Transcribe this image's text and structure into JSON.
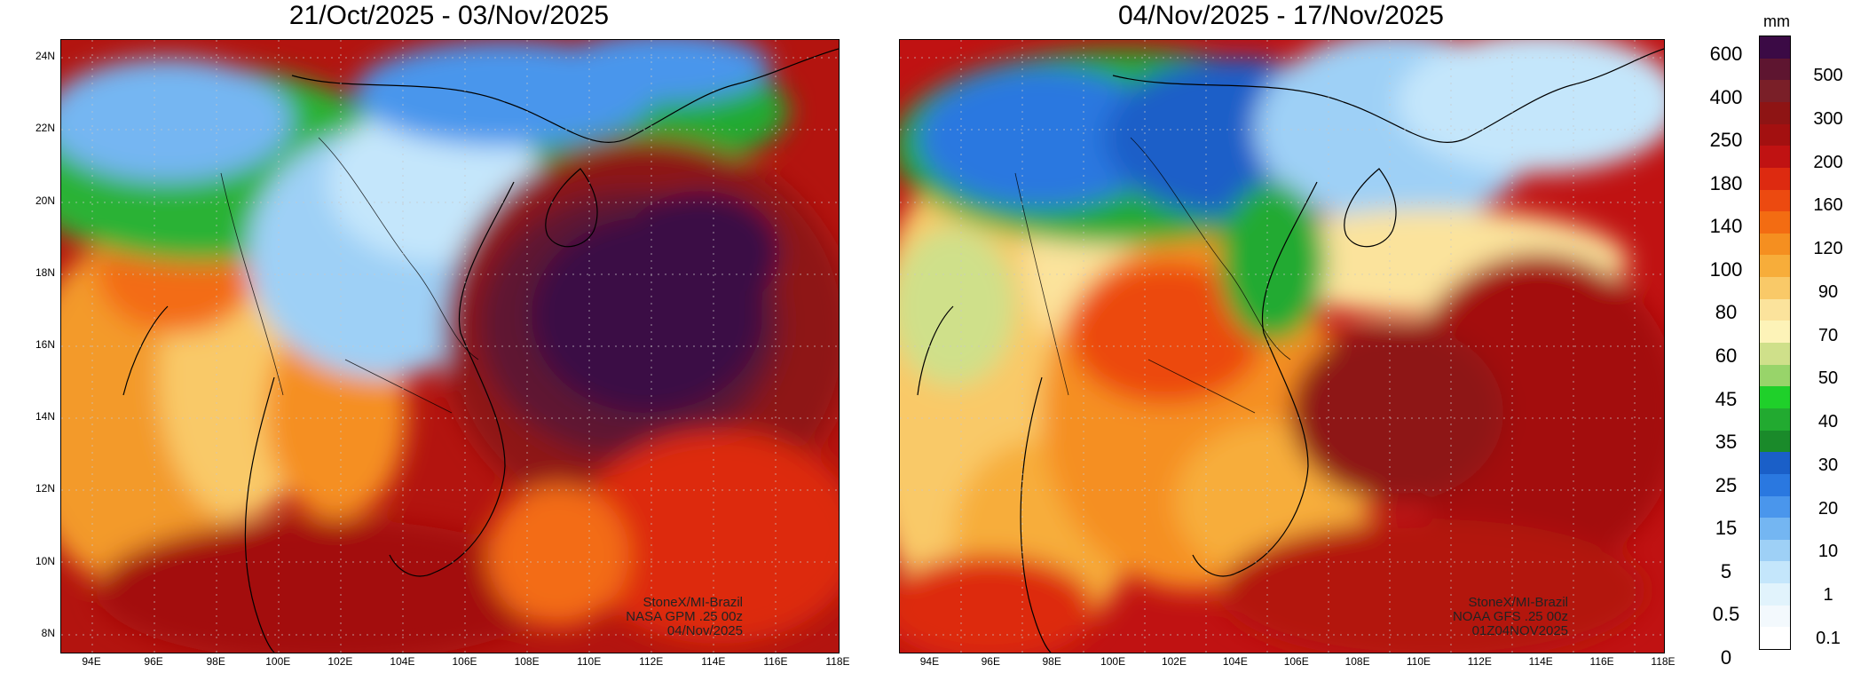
{
  "panels": [
    {
      "title": "21/Oct/2025 - 03/Nov/2025",
      "credit": [
        "StoneX/MI-Brazil",
        "NASA GPM .25 00z",
        "04/Nov/2025"
      ]
    },
    {
      "title": "04/Nov/2025 - 17/Nov/2025",
      "credit": [
        "StoneX/MI-Brazil",
        "NOAA GFS .25 00z",
        "01Z04NOV2025"
      ]
    }
  ],
  "map_extent": {
    "lon_min": 93,
    "lon_max": 118,
    "lat_min": 7.5,
    "lat_max": 24.5
  },
  "lat_ticks": [
    "24N",
    "22N",
    "20N",
    "18N",
    "16N",
    "14N",
    "12N",
    "10N",
    "8N"
  ],
  "lat_values": [
    24,
    22,
    20,
    18,
    16,
    14,
    12,
    10,
    8
  ],
  "lon_ticks": [
    "94E",
    "96E",
    "98E",
    "100E",
    "102E",
    "104E",
    "106E",
    "108E",
    "110E",
    "112E",
    "114E",
    "116E",
    "118E"
  ],
  "lon_values": [
    94,
    96,
    98,
    100,
    102,
    104,
    106,
    108,
    110,
    112,
    114,
    116,
    118
  ],
  "colorbar": {
    "unit": "mm",
    "labels_left": [
      "600",
      "400",
      "250",
      "180",
      "140",
      "100",
      "80",
      "60",
      "45",
      "35",
      "25",
      "15",
      "5",
      "0.5",
      "0"
    ],
    "labels_right": [
      "500",
      "300",
      "200",
      "160",
      "120",
      "90",
      "70",
      "50",
      "40",
      "30",
      "20",
      "10",
      "1",
      "0.1"
    ],
    "colors_top_to_bottom": [
      "#3b0a45",
      "#5e1530",
      "#7a1f28",
      "#8e1414",
      "#a31010",
      "#c01212",
      "#dd2a10",
      "#ec4a10",
      "#f36c12",
      "#f58f20",
      "#f7ad3a",
      "#f9c968",
      "#fbe39c",
      "#fdf3b8",
      "#cfe08a",
      "#98d46a",
      "#1fd02a",
      "#22aa30",
      "#1a8a2a",
      "#1a5fc8",
      "#2a78e0",
      "#4a96ec",
      "#74b6f2",
      "#9ed0f6",
      "#c4e6fb",
      "#e1f3fc",
      "#f3f9fd",
      "#ffffff"
    ]
  }
}
